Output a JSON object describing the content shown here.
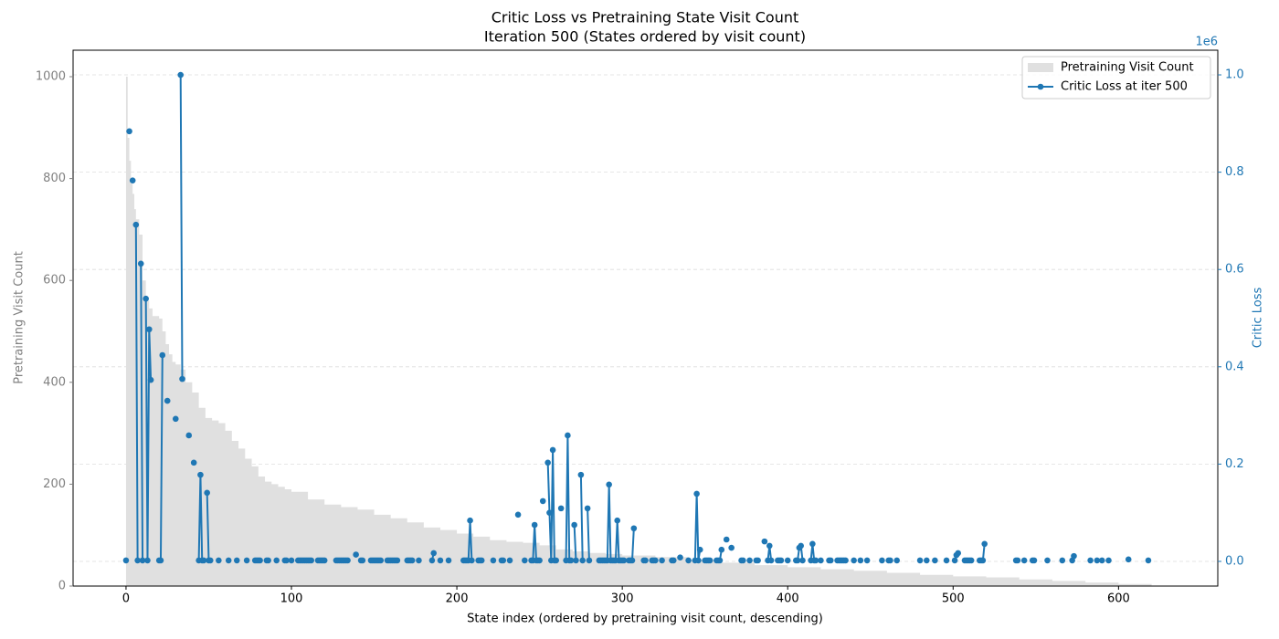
{
  "chart_data": {
    "type": "combo",
    "title": "Critic Loss vs Pretraining State Visit Count",
    "subtitle": "Iteration 500 (States ordered by visit count)",
    "x_label": "State index (ordered by pretraining visit count, descending)",
    "y_label": "Pretraining Visit Count",
    "y2_label": "Critic Loss",
    "y2_offset_label": "1e6",
    "xlim": [
      -32,
      660
    ],
    "xticks": [
      0,
      100,
      200,
      300,
      400,
      500,
      600
    ],
    "ylim": [
      0,
      1052
    ],
    "yticks": [
      0,
      200,
      400,
      600,
      800,
      1000
    ],
    "y2lim": [
      -50700,
      1050700
    ],
    "y2ticks": [
      {
        "value": 0,
        "label": "0.0"
      },
      {
        "value": 200000,
        "label": "0.2"
      },
      {
        "value": 400000,
        "label": "0.4"
      },
      {
        "value": 600000,
        "label": "0.6"
      },
      {
        "value": 800000,
        "label": "0.8"
      },
      {
        "value": 1000000,
        "label": "1.0"
      }
    ],
    "grid": true,
    "legend": "upper right",
    "series": [
      {
        "name": "Pretraining Visit Count",
        "type": "area",
        "color": "#e0e0e0",
        "x": [
          0,
          1,
          2,
          3,
          4,
          5,
          6,
          8,
          10,
          12,
          14,
          16,
          20,
          22,
          24,
          26,
          28,
          30,
          33,
          36,
          40,
          44,
          48,
          52,
          56,
          60,
          64,
          68,
          72,
          76,
          80,
          84,
          88,
          92,
          96,
          100,
          110,
          120,
          130,
          140,
          150,
          160,
          170,
          180,
          190,
          200,
          210,
          220,
          230,
          240,
          250,
          260,
          270,
          280,
          290,
          300,
          320,
          340,
          360,
          380,
          400,
          420,
          440,
          460,
          480,
          500,
          520,
          540,
          560,
          580,
          600,
          620,
          630
        ],
        "values": [
          1000,
          880,
          835,
          790,
          770,
          740,
          720,
          690,
          600,
          560,
          545,
          530,
          525,
          500,
          475,
          455,
          440,
          435,
          425,
          400,
          380,
          350,
          330,
          325,
          320,
          305,
          285,
          270,
          250,
          235,
          215,
          205,
          200,
          195,
          190,
          185,
          170,
          160,
          155,
          150,
          140,
          133,
          125,
          115,
          110,
          103,
          97,
          90,
          87,
          85,
          80,
          72,
          68,
          65,
          63,
          60,
          57,
          52,
          46,
          41,
          37,
          33,
          30,
          26,
          22,
          19,
          17,
          13,
          10,
          7,
          4,
          1,
          0
        ]
      },
      {
        "name": "Critic Loss at iter 500",
        "type": "line",
        "axis": "y2",
        "color": "#1f77b4",
        "x": [
          0,
          1,
          2,
          3,
          4,
          5,
          6,
          7,
          8,
          9,
          10,
          11,
          12,
          13,
          14,
          15,
          16,
          20,
          21,
          22,
          23,
          25,
          26,
          30,
          31,
          33,
          34,
          35,
          38,
          39,
          41,
          42,
          44,
          45,
          46,
          47,
          48,
          49,
          50,
          51,
          52,
          56,
          57,
          62,
          63,
          67,
          68,
          73,
          74,
          78,
          79,
          80,
          81,
          82,
          85,
          86,
          87,
          91,
          92,
          96,
          97,
          98,
          100,
          101,
          104,
          105,
          106,
          107,
          108,
          109,
          110,
          111,
          112,
          113,
          116,
          117,
          118,
          119,
          120,
          121,
          127,
          128,
          129,
          130,
          131,
          132,
          133,
          134,
          135,
          139,
          140,
          142,
          143,
          144,
          148,
          149,
          150,
          151,
          152,
          153,
          154,
          155,
          158,
          159,
          160,
          161,
          162,
          163,
          164,
          165,
          170,
          171,
          172,
          173,
          174,
          177,
          178,
          185,
          186,
          187,
          190,
          191,
          195,
          196,
          204,
          205,
          206,
          207,
          208,
          209,
          210,
          213,
          214,
          215,
          216,
          222,
          223,
          227,
          228,
          229,
          232,
          233,
          237,
          238,
          241,
          242,
          245,
          246,
          247,
          248,
          249,
          250,
          251,
          252,
          253,
          255,
          256,
          257,
          258,
          259,
          260,
          261,
          263,
          264,
          266,
          267,
          268,
          269,
          270,
          271,
          272,
          273,
          275,
          276,
          277,
          279,
          280,
          281,
          286,
          287,
          288,
          289,
          290,
          291,
          292,
          293,
          294,
          295,
          296,
          297,
          298,
          299,
          300,
          301,
          302,
          304,
          305,
          306,
          307,
          308,
          313,
          314,
          315,
          318,
          319,
          320,
          321,
          324,
          325,
          330,
          331,
          332,
          335,
          336,
          340,
          341,
          344,
          345,
          346,
          347,
          348,
          350,
          351,
          352,
          353,
          354,
          357,
          358,
          359,
          360,
          361,
          363,
          364,
          366,
          367,
          372,
          373,
          374,
          377,
          378,
          381,
          382,
          383,
          386,
          387,
          388,
          389,
          390,
          391,
          394,
          395,
          396,
          397,
          400,
          401,
          405,
          406,
          407,
          408,
          409,
          410,
          414,
          415,
          416,
          417,
          418,
          420,
          421,
          425,
          426,
          427,
          430,
          431,
          432,
          433,
          434,
          435,
          436,
          440,
          441,
          444,
          445,
          448,
          449,
          457,
          458,
          461,
          462,
          463,
          466,
          467,
          480,
          481,
          484,
          485,
          489,
          490,
          496,
          497,
          501,
          502,
          503,
          504,
          507,
          508,
          509,
          510,
          511,
          512,
          516,
          517,
          518,
          519,
          520,
          538,
          539,
          540,
          543,
          544,
          548,
          549,
          550,
          557,
          558,
          566,
          567,
          572,
          573,
          574,
          583,
          584,
          587,
          588,
          590,
          591,
          594,
          595,
          606,
          607,
          618
        ],
        "values": [
          2000,
          null,
          884000,
          null,
          783000,
          null,
          692000,
          2000,
          null,
          612000,
          2000,
          null,
          540000,
          2000,
          477000,
          373000,
          null,
          2000,
          2000,
          424000,
          null,
          330000,
          null,
          293000,
          null,
          1000000,
          375000,
          null,
          259000,
          null,
          203000,
          null,
          2000,
          178000,
          2000,
          2000,
          null,
          141000,
          2000,
          2000,
          null,
          2000,
          null,
          2000,
          null,
          2000,
          null,
          2000,
          null,
          2000,
          2000,
          2000,
          2000,
          null,
          2000,
          2000,
          null,
          2000,
          null,
          2000,
          2000,
          null,
          2000,
          null,
          2000,
          2000,
          2000,
          2000,
          2000,
          2000,
          2000,
          2000,
          2000,
          null,
          2000,
          2000,
          2000,
          2000,
          2000,
          null,
          2000,
          2000,
          2000,
          2000,
          2000,
          2000,
          2000,
          2000,
          null,
          14000,
          null,
          2000,
          2000,
          null,
          2000,
          2000,
          2000,
          2000,
          2000,
          2000,
          2000,
          null,
          2000,
          2000,
          2000,
          2000,
          2000,
          2000,
          2000,
          null,
          2000,
          2000,
          2000,
          2000,
          null,
          2000,
          null,
          2000,
          17000,
          null,
          2000,
          null,
          2000,
          null,
          2000,
          2000,
          2000,
          2000,
          84000,
          2000,
          null,
          2000,
          2000,
          2000,
          null,
          2000,
          null,
          2000,
          2000,
          null,
          2000,
          null,
          96000,
          null,
          2000,
          null,
          2000,
          2000,
          75000,
          2000,
          2000,
          2000,
          null,
          124000,
          null,
          203000,
          100000,
          2000,
          229000,
          2000,
          2000,
          null,
          109000,
          null,
          2000,
          259000,
          2000,
          2000,
          null,
          75000,
          2000,
          null,
          178000,
          2000,
          null,
          109000,
          2000,
          null,
          2000,
          2000,
          2000,
          2000,
          2000,
          2000,
          158000,
          2000,
          2000,
          2000,
          2000,
          84000,
          2000,
          2000,
          2000,
          2000,
          null,
          2000,
          2000,
          2000,
          68000,
          null,
          2000,
          2000,
          null,
          2000,
          2000,
          2000,
          null,
          2000,
          null,
          2000,
          2000,
          null,
          8000,
          null,
          2000,
          null,
          2000,
          139000,
          2000,
          24000,
          null,
          2000,
          2000,
          2000,
          2000,
          null,
          2000,
          2000,
          2000,
          24000,
          null,
          45000,
          null,
          28000,
          null,
          2000,
          2000,
          null,
          2000,
          null,
          2000,
          2000,
          null,
          41000,
          null,
          2000,
          32000,
          2000,
          null,
          2000,
          2000,
          2000,
          null,
          2000,
          null,
          2000,
          2000,
          28000,
          32000,
          2000,
          null,
          2000,
          36000,
          2000,
          2000,
          null,
          2000,
          null,
          2000,
          2000,
          null,
          2000,
          2000,
          2000,
          2000,
          2000,
          2000,
          null,
          2000,
          null,
          2000,
          null,
          2000,
          null,
          2000,
          null,
          2000,
          2000,
          null,
          2000,
          null,
          2000,
          null,
          2000,
          null,
          2000,
          null,
          2000,
          null,
          2000,
          13000,
          17000,
          null,
          2000,
          2000,
          2000,
          2000,
          2000,
          null,
          2000,
          2000,
          2000,
          36000,
          null,
          2000,
          2000,
          null,
          2000,
          null,
          2000,
          2000,
          null,
          2000,
          null,
          2000,
          null,
          2000,
          11000,
          null,
          2000,
          null,
          2000,
          null,
          2000,
          null,
          2000,
          null,
          4000,
          null,
          2000
        ]
      }
    ]
  }
}
